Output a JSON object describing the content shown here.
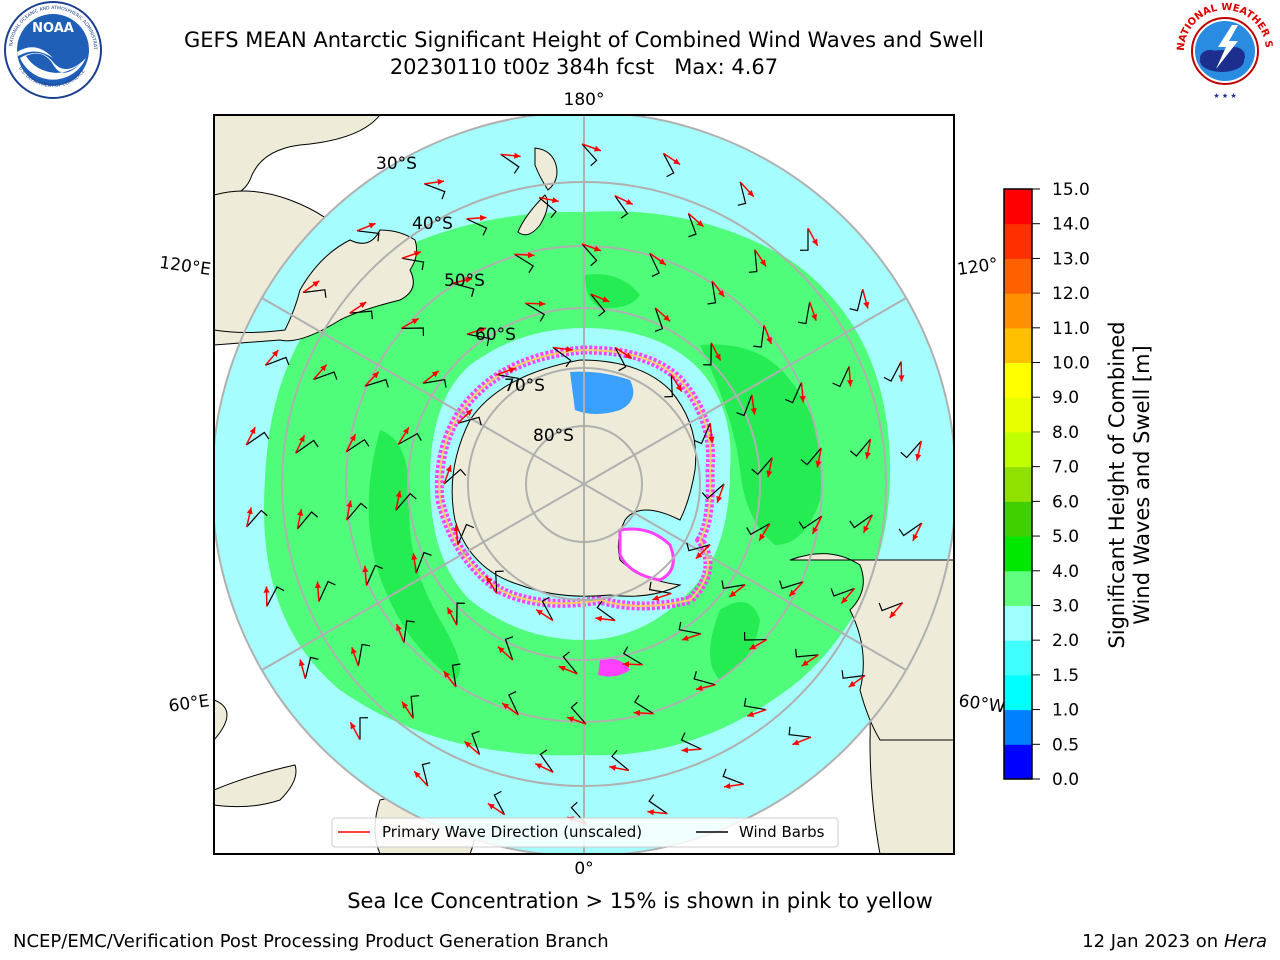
{
  "title": {
    "line1": "GEFS MEAN Antarctic Significant Height of Combined Wind Waves and Swell",
    "line2": "20230110 t00z 384h fcst   Max: 4.67"
  },
  "logos": {
    "noaa": {
      "text": "NOAA",
      "ring_text": "NATIONAL OCEANIC AND ATMOSPHERIC ADMINISTRATION",
      "bottom_text": "U.S. DEPARTMENT OF COMMERCE"
    },
    "nws": {
      "ring_text": "NATIONAL WEATHER SERVICE"
    }
  },
  "map": {
    "projection": "south-polar-stereographic",
    "longitude_labels": {
      "top": "180°",
      "bottom": "0°",
      "upper_left": "120°E",
      "upper_right": "120°",
      "lower_left": "60°E",
      "lower_right": "60°W"
    },
    "latitude_labels": [
      "30°S",
      "40°S",
      "50°S",
      "60°S",
      "70°S",
      "80°S"
    ],
    "legend": {
      "wave_direction": "Primary Wave Direction (unscaled)",
      "wind_barbs": "Wind Barbs"
    },
    "colors": {
      "land": "#eeecd9",
      "ocean_0_2": "#a6fdfd",
      "ocean_2_3": "#4ffd7a",
      "ocean_3_4": "#24ec52",
      "ice_edge": "#ff40ff",
      "arrow": "#ff0000",
      "grid": "#b0b0b0"
    }
  },
  "colorbar": {
    "label": "Significant Height of Combined Wind Waves and Swell [m]",
    "label_lines": [
      "Significant Height of Combined",
      "Wind Waves and Swell [m]"
    ],
    "ticks": [
      "0.0",
      "0.5",
      "1.0",
      "1.5",
      "2.0",
      "3.0",
      "4.0",
      "5.0",
      "6.0",
      "7.0",
      "8.0",
      "9.0",
      "10.0",
      "11.0",
      "12.0",
      "13.0",
      "14.0",
      "15.0"
    ],
    "colors": [
      "#0000ff",
      "#0080ff",
      "#00ffff",
      "#40ffff",
      "#a0ffff",
      "#60ff80",
      "#00e800",
      "#40d000",
      "#90e000",
      "#c0ff00",
      "#e8ff00",
      "#ffff00",
      "#ffc000",
      "#ff9000",
      "#ff6000",
      "#ff3000",
      "#ff0000"
    ]
  },
  "subtitle": "Sea Ice Concentration > 15% is shown in pink to yellow",
  "footer": {
    "left": "NCEP/EMC/Verification Post Processing Product Generation Branch",
    "right_prefix": "12 Jan 2023 on ",
    "right_host": "Hera"
  }
}
